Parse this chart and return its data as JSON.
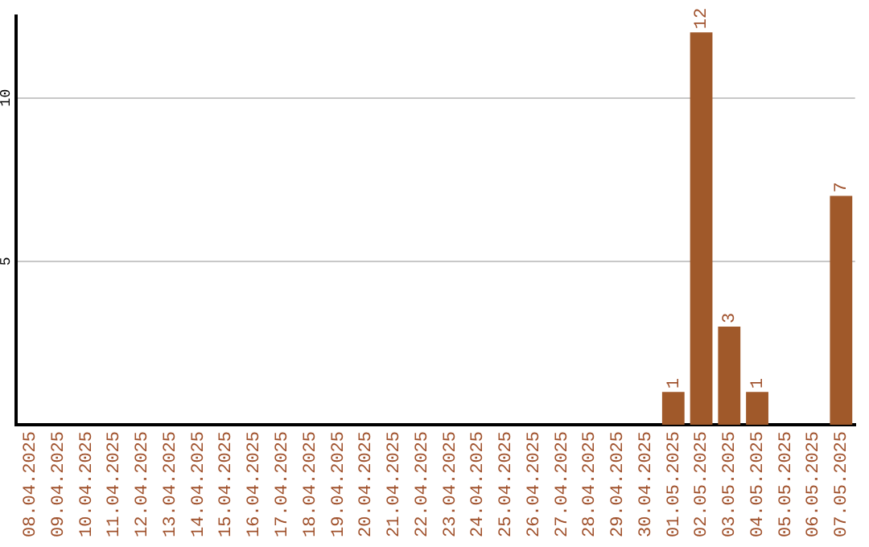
{
  "chart_data": {
    "type": "bar",
    "categories": [
      "08.04.2025",
      "09.04.2025",
      "10.04.2025",
      "11.04.2025",
      "12.04.2025",
      "13.04.2025",
      "14.04.2025",
      "15.04.2025",
      "16.04.2025",
      "17.04.2025",
      "18.04.2025",
      "19.04.2025",
      "20.04.2025",
      "21.04.2025",
      "22.04.2025",
      "23.04.2025",
      "24.04.2025",
      "25.04.2025",
      "26.04.2025",
      "27.04.2025",
      "28.04.2025",
      "29.04.2025",
      "30.04.2025",
      "01.05.2025",
      "02.05.2025",
      "03.05.2025",
      "04.05.2025",
      "05.05.2025",
      "06.05.2025",
      "07.05.2025"
    ],
    "values": [
      0,
      0,
      0,
      0,
      0,
      0,
      0,
      0,
      0,
      0,
      0,
      0,
      0,
      0,
      0,
      0,
      0,
      0,
      0,
      0,
      0,
      0,
      0,
      1,
      12,
      3,
      1,
      0,
      0,
      7
    ],
    "value_labels": [
      null,
      null,
      null,
      null,
      null,
      null,
      null,
      null,
      null,
      null,
      null,
      null,
      null,
      null,
      null,
      null,
      null,
      null,
      null,
      null,
      null,
      null,
      null,
      "1",
      "12",
      "3",
      "1",
      null,
      null,
      "7"
    ],
    "color": "#a0592a",
    "ylim": [
      0,
      12.5
    ],
    "yticks": [
      5,
      10
    ],
    "grid": "y",
    "legend": false
  }
}
